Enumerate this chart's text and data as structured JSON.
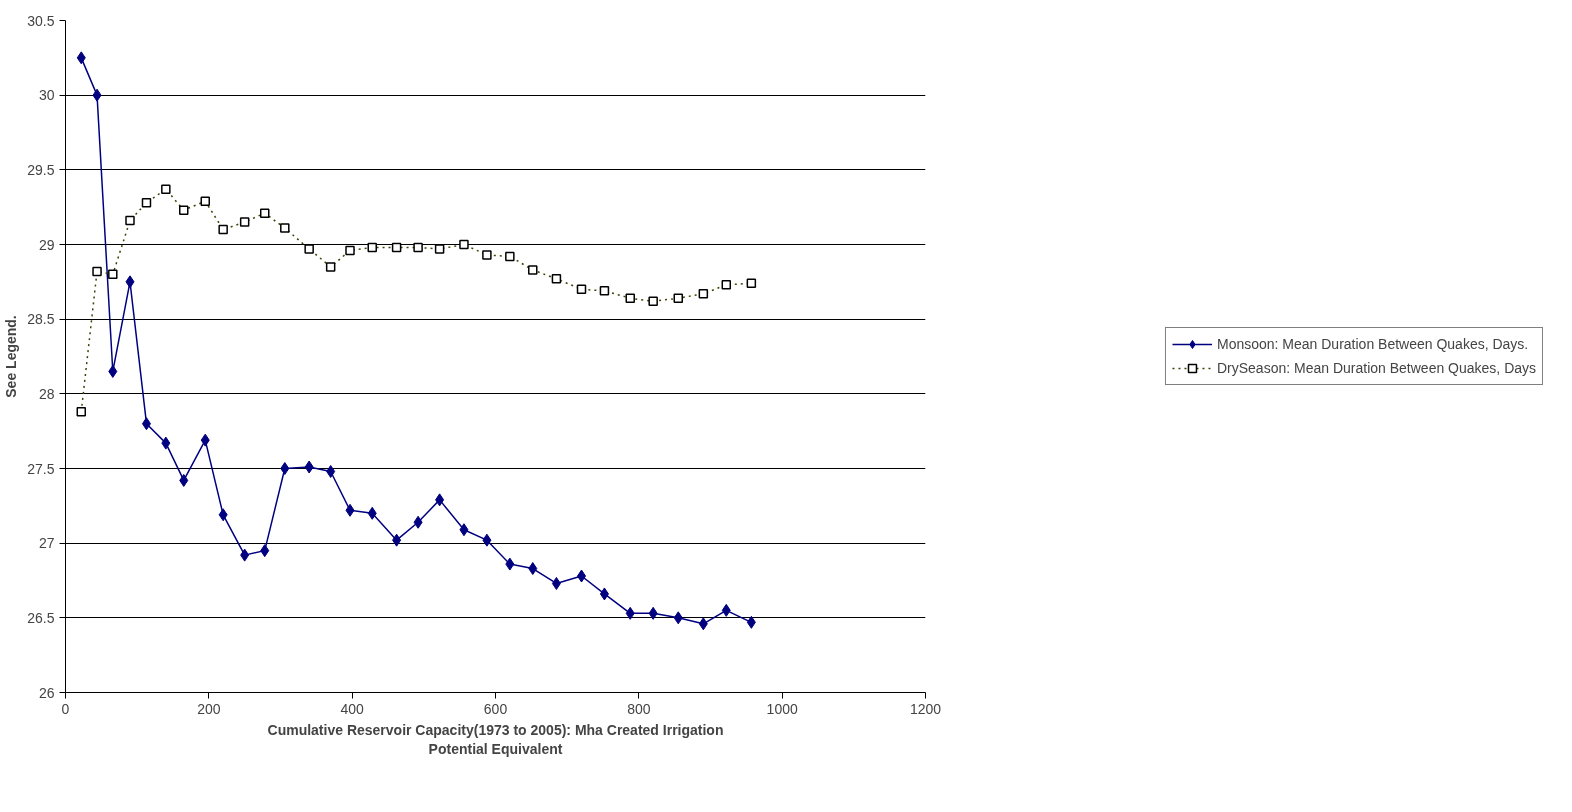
{
  "chart_data": {
    "type": "line",
    "xlabel": "Cumulative Reservoir Capacity(1973 to 2005): Mha Created Irrigation Potential Equivalent",
    "ylabel": "See Legend.",
    "x": [
      22,
      44,
      66,
      90,
      113,
      140,
      165,
      195,
      220,
      250,
      278,
      306,
      340,
      370,
      397,
      428,
      462,
      492,
      522,
      556,
      588,
      620,
      652,
      685,
      720,
      752,
      788,
      820,
      855,
      890,
      922,
      957
    ],
    "series": [
      {
        "name": "Monsoon: Mean Duration Between Quakes, Days.",
        "color": "#000080",
        "marker": "diamond",
        "line_style": "solid",
        "values": [
          30.25,
          30.0,
          28.15,
          28.75,
          27.8,
          27.67,
          27.42,
          27.69,
          27.19,
          26.92,
          26.95,
          27.5,
          27.51,
          27.48,
          27.22,
          27.2,
          27.02,
          27.14,
          27.29,
          27.09,
          27.02,
          26.86,
          26.83,
          26.73,
          26.78,
          26.66,
          26.53,
          26.53,
          26.5,
          26.46,
          26.55,
          26.47
        ]
      },
      {
        "name": "DrySeason: Mean Duration Between Quakes, Days",
        "color": "#404000",
        "marker": "square",
        "line_style": "dotted",
        "values": [
          27.88,
          28.82,
          28.8,
          29.16,
          29.28,
          29.37,
          29.23,
          29.29,
          29.1,
          29.15,
          29.21,
          29.11,
          28.97,
          28.85,
          28.96,
          28.98,
          28.98,
          28.98,
          28.97,
          29.0,
          28.93,
          28.92,
          28.83,
          28.77,
          28.7,
          28.69,
          28.64,
          28.62,
          28.64,
          28.67,
          28.73,
          28.74
        ]
      }
    ],
    "xlim": [
      0,
      1200
    ],
    "xticks": [
      0,
      200,
      400,
      600,
      800,
      1000,
      1200
    ],
    "ylim": [
      26,
      30.5
    ],
    "yticks": [
      26,
      26.5,
      27,
      27.5,
      28,
      28.5,
      29,
      29.5,
      30,
      30.5
    ],
    "grid": "y",
    "legend": "right"
  }
}
